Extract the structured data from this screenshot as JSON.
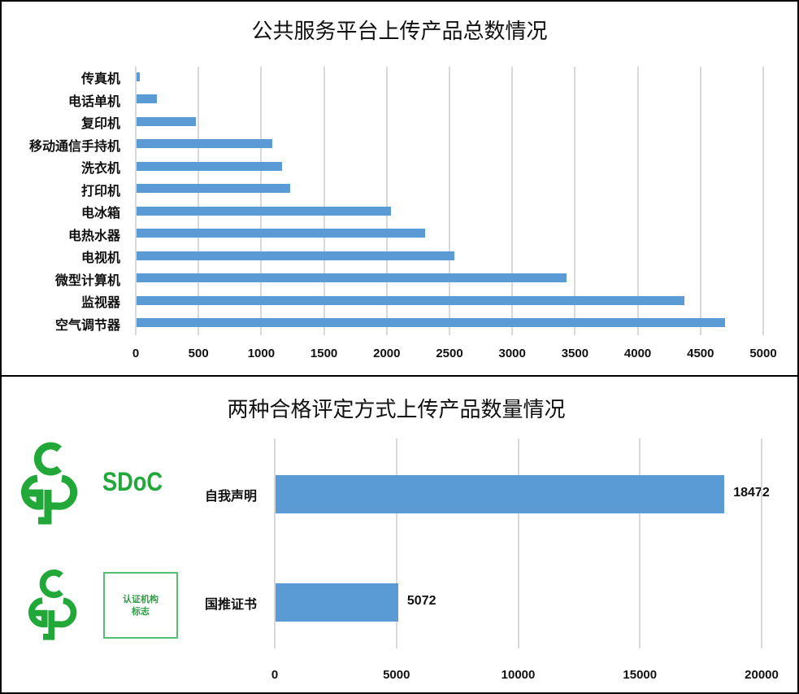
{
  "chart_data": [
    {
      "type": "bar",
      "orientation": "horizontal",
      "title": "公共服务平台上传产品总数情况",
      "xlabel": "",
      "ylabel": "",
      "xlim": [
        0,
        5000
      ],
      "xticks": [
        0,
        500,
        1000,
        1500,
        2000,
        2500,
        3000,
        3500,
        4000,
        4500,
        5000
      ],
      "grid": true,
      "legend": null,
      "bar_color": "#5b9bd5",
      "categories": [
        "传真机",
        "电话单机",
        "复印机",
        "移动通信手持机",
        "洗衣机",
        "打印机",
        "电冰箱",
        "电热水器",
        "电视机",
        "微型计算机",
        "监视器",
        "空气调节器"
      ],
      "values": [
        30,
        170,
        480,
        1090,
        1165,
        1230,
        2035,
        2305,
        2540,
        3435,
        4370,
        4695
      ]
    },
    {
      "type": "bar",
      "orientation": "horizontal",
      "title": "两种合格评定方式上传产品数量情况",
      "xlabel": "",
      "ylabel": "",
      "xlim": [
        0,
        20000
      ],
      "xticks": [
        0,
        5000,
        10000,
        15000,
        20000
      ],
      "grid": true,
      "legend": null,
      "bar_color": "#5b9bd5",
      "categories": [
        "自我声明",
        "国推证书"
      ],
      "values": [
        18472,
        5072
      ],
      "data_labels": [
        "18472",
        "5072"
      ]
    }
  ],
  "top_chart": {
    "title": "公共服务平台上传产品总数情况",
    "categories": [
      "传真机",
      "电话单机",
      "复印机",
      "移动通信手持机",
      "洗衣机",
      "打印机",
      "电冰箱",
      "电热水器",
      "电视机",
      "微型计算机",
      "监视器",
      "空气调节器"
    ],
    "ticks": [
      "0",
      "500",
      "1000",
      "1500",
      "2000",
      "2500",
      "3000",
      "3500",
      "4000",
      "4500",
      "5000"
    ]
  },
  "bottom_chart": {
    "title": "两种合格评定方式上传产品数量情况",
    "categories": [
      "自我声明",
      "国推证书"
    ],
    "data_labels": [
      "18472",
      "5072"
    ],
    "ticks": [
      "0",
      "5000",
      "10000",
      "15000",
      "20000"
    ]
  },
  "logos": {
    "sdoc": {
      "icon": "ccc-cgp-logo",
      "text": "SDoC",
      "color": "#22a839"
    },
    "certification": {
      "icon": "ccc-cgp-logo",
      "box_text_line1": "认证机构",
      "box_text_line2": "标志",
      "color": "#2f9e44"
    }
  }
}
